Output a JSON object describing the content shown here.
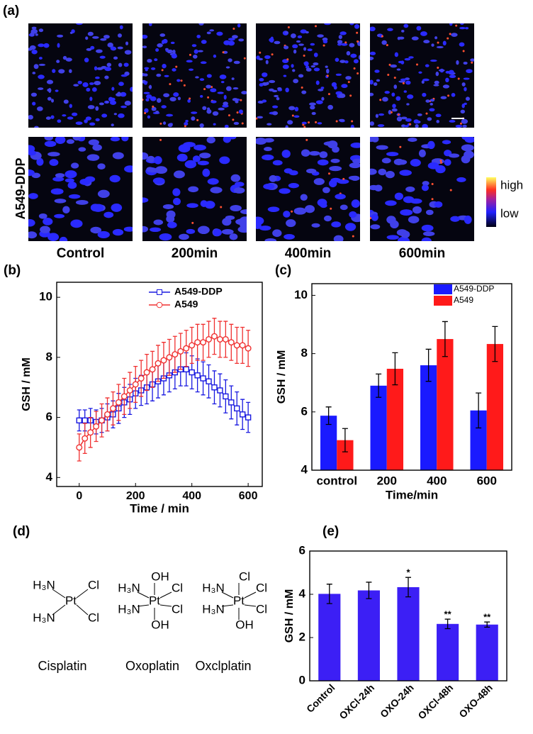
{
  "panel_a": {
    "label": "(a)",
    "row_label": "A549-DDP",
    "columns": [
      "Control",
      "200min",
      "400min",
      "600min"
    ],
    "colorbar": {
      "high": "high",
      "low": "low"
    }
  },
  "chart_data": [
    {
      "panel_label": "(b)",
      "type": "line",
      "x": [
        0,
        20,
        40,
        60,
        80,
        100,
        120,
        140,
        160,
        180,
        200,
        220,
        240,
        260,
        280,
        300,
        320,
        340,
        360,
        380,
        400,
        420,
        440,
        460,
        480,
        500,
        520,
        540,
        560,
        580,
        600
      ],
      "xlim": [
        -80,
        650
      ],
      "xticks": [
        0,
        200,
        400,
        600
      ],
      "ylim": [
        3.7,
        10.5
      ],
      "yticks": [
        4,
        6,
        8,
        10
      ],
      "xlabel": "Time / min",
      "ylabel": "GSH / mM",
      "legend": "upper right",
      "series": [
        {
          "name": "A549-DDP",
          "color": "#1818e0",
          "marker": "square",
          "values": [
            5.9,
            5.9,
            5.9,
            5.85,
            5.9,
            6.0,
            6.1,
            6.3,
            6.5,
            6.6,
            6.8,
            6.9,
            7.0,
            7.1,
            7.2,
            7.3,
            7.4,
            7.5,
            7.6,
            7.6,
            7.5,
            7.4,
            7.3,
            7.2,
            7.0,
            6.9,
            6.7,
            6.5,
            6.3,
            6.1,
            6.0
          ],
          "errors": [
            0.35,
            0.35,
            0.4,
            0.4,
            0.4,
            0.45,
            0.45,
            0.5,
            0.5,
            0.5,
            0.5,
            0.5,
            0.55,
            0.55,
            0.55,
            0.55,
            0.55,
            0.55,
            0.55,
            0.55,
            0.55,
            0.55,
            0.55,
            0.55,
            0.55,
            0.55,
            0.55,
            0.55,
            0.55,
            0.5,
            0.5
          ]
        },
        {
          "name": "A549",
          "color": "#f03030",
          "marker": "circle",
          "values": [
            5.0,
            5.3,
            5.5,
            5.7,
            5.9,
            6.1,
            6.3,
            6.5,
            6.7,
            6.9,
            7.1,
            7.3,
            7.5,
            7.6,
            7.8,
            7.9,
            8.0,
            8.1,
            8.2,
            8.3,
            8.4,
            8.5,
            8.5,
            8.6,
            8.7,
            8.6,
            8.6,
            8.5,
            8.4,
            8.4,
            8.3
          ],
          "errors": [
            0.45,
            0.5,
            0.5,
            0.5,
            0.55,
            0.55,
            0.55,
            0.6,
            0.6,
            0.6,
            0.6,
            0.6,
            0.6,
            0.6,
            0.6,
            0.6,
            0.6,
            0.6,
            0.6,
            0.6,
            0.6,
            0.6,
            0.6,
            0.6,
            0.6,
            0.6,
            0.6,
            0.6,
            0.6,
            0.6,
            0.6
          ]
        }
      ]
    },
    {
      "panel_label": "(c)",
      "type": "bar",
      "categories": [
        "control",
        "200",
        "400",
        "600"
      ],
      "ylim": [
        4,
        10.4
      ],
      "yticks": [
        4,
        6,
        8,
        10
      ],
      "xlabel": "Time/min",
      "ylabel": "GSH / mM",
      "legend": "upper right",
      "series": [
        {
          "name": "A549-DDP",
          "color": "#1a1aff",
          "values": [
            5.87,
            6.9,
            7.6,
            6.05
          ],
          "errors": [
            0.3,
            0.4,
            0.55,
            0.6
          ]
        },
        {
          "name": "A549",
          "color": "#ff1a1a",
          "values": [
            5.03,
            7.48,
            8.5,
            8.33
          ],
          "errors": [
            0.4,
            0.55,
            0.6,
            0.6
          ]
        }
      ]
    },
    {
      "panel_label": "(e)",
      "type": "bar",
      "categories": [
        "Control",
        "OXCl-24h",
        "OXO-24h",
        "OXCl-48h",
        "OXO-48h"
      ],
      "values": [
        4.02,
        4.18,
        4.33,
        2.63,
        2.6
      ],
      "errors": [
        0.45,
        0.38,
        0.45,
        0.22,
        0.12
      ],
      "color": "#3c1ff5",
      "ylim": [
        0,
        6
      ],
      "yticks": [
        0,
        2,
        4,
        6
      ],
      "ylabel": "GSH / mM",
      "annotations": [
        {
          "category": "OXO-24h",
          "text": "*"
        },
        {
          "category": "OXCl-48h",
          "text": "**"
        },
        {
          "category": "OXO-48h",
          "text": "**"
        }
      ]
    }
  ],
  "panel_d": {
    "label": "(d)",
    "compounds": [
      {
        "name": "Cisplatin",
        "center": "Pt",
        "left": [
          "H₃N",
          "H₃N"
        ],
        "right": [
          "Cl",
          "Cl"
        ]
      },
      {
        "name": "Oxoplatin",
        "center": "Pt",
        "left": [
          "H₃N",
          "H₃N"
        ],
        "right": [
          "Cl",
          "Cl"
        ],
        "top": "OH",
        "bottom": "OH"
      },
      {
        "name": "Oxclplatin",
        "center": "Pt",
        "left": [
          "H₃N",
          "H₃N"
        ],
        "right": [
          "Cl",
          "Cl"
        ],
        "top": "Cl",
        "bottom": "OH"
      }
    ]
  }
}
